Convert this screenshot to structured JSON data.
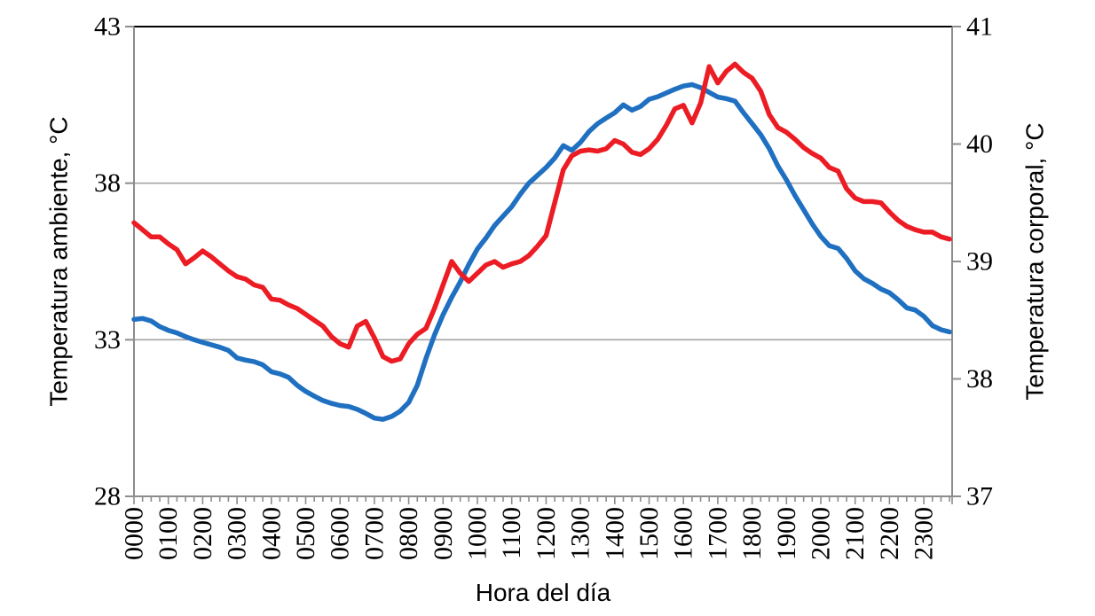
{
  "chart_data": {
    "type": "line",
    "title": "",
    "legend": "none",
    "background": "#ffffff",
    "x_axis": {
      "label": "Hora del día",
      "tick_labels": [
        "0000",
        "0100",
        "0200",
        "0300",
        "0400",
        "0500",
        "0600",
        "0700",
        "0800",
        "0900",
        "1000",
        "1100",
        "1200",
        "1300",
        "1400",
        "1500",
        "1600",
        "1700",
        "1800",
        "1900",
        "2000",
        "2100",
        "2200",
        "2300"
      ],
      "tick_label_rotation_deg": -90,
      "minor_tick_interval_minutes": 15,
      "range_hours": [
        0,
        24
      ]
    },
    "y_left": {
      "label": "Temperatura ambiente, °C",
      "min": 28,
      "max": 43,
      "ticks": [
        28,
        33,
        38,
        43
      ]
    },
    "y_right": {
      "label": "Temperatura corporal, °C",
      "min": 37,
      "max": 41,
      "ticks": [
        37,
        38,
        39,
        40,
        41
      ]
    },
    "gridlines": {
      "left_axis_values": [
        33,
        38
      ],
      "color": "#a3a3a3",
      "top_border_color": "#000000"
    },
    "axis_line_color": "#8c8c8c",
    "sampling": {
      "start_hour": 0,
      "step_hours": 0.25,
      "points_per_series": 96
    },
    "series": [
      {
        "name": "Temperatura ambiente",
        "axis": "left",
        "color": "#1f70c1",
        "values": [
          33.65,
          33.68,
          33.6,
          33.42,
          33.3,
          33.22,
          33.1,
          33.0,
          32.92,
          32.84,
          32.76,
          32.66,
          32.42,
          32.35,
          32.3,
          32.2,
          31.98,
          31.91,
          31.8,
          31.55,
          31.35,
          31.2,
          31.06,
          30.97,
          30.9,
          30.87,
          30.78,
          30.65,
          30.5,
          30.46,
          30.55,
          30.72,
          31.0,
          31.55,
          32.4,
          33.15,
          33.8,
          34.35,
          34.85,
          35.4,
          35.9,
          36.25,
          36.65,
          36.95,
          37.25,
          37.65,
          38.0,
          38.25,
          38.5,
          38.8,
          39.2,
          39.05,
          39.3,
          39.65,
          39.9,
          40.08,
          40.25,
          40.5,
          40.33,
          40.45,
          40.68,
          40.76,
          40.88,
          41.0,
          41.1,
          41.15,
          41.05,
          40.9,
          40.75,
          40.7,
          40.62,
          40.25,
          39.9,
          39.55,
          39.1,
          38.55,
          38.1,
          37.6,
          37.15,
          36.7,
          36.3,
          36.0,
          35.92,
          35.6,
          35.2,
          34.95,
          34.8,
          34.62,
          34.5,
          34.28,
          34.02,
          33.95,
          33.75,
          33.45,
          33.32,
          33.25
        ]
      },
      {
        "name": "Temperatura corporal",
        "axis": "right",
        "color": "#ec1c24",
        "values": [
          39.33,
          39.27,
          39.21,
          39.21,
          39.15,
          39.1,
          38.98,
          39.03,
          39.09,
          39.04,
          38.98,
          38.92,
          38.87,
          38.85,
          38.8,
          38.78,
          38.68,
          38.67,
          38.63,
          38.6,
          38.55,
          38.5,
          38.45,
          38.36,
          38.3,
          38.27,
          38.45,
          38.49,
          38.35,
          38.19,
          38.15,
          38.17,
          38.3,
          38.38,
          38.43,
          38.6,
          38.8,
          39.0,
          38.9,
          38.83,
          38.9,
          38.97,
          39.0,
          38.95,
          38.98,
          39.0,
          39.05,
          39.13,
          39.22,
          39.5,
          39.78,
          39.9,
          39.94,
          39.95,
          39.94,
          39.96,
          40.03,
          40.0,
          39.93,
          39.91,
          39.96,
          40.04,
          40.16,
          40.3,
          40.33,
          40.18,
          40.35,
          40.66,
          40.52,
          40.62,
          40.68,
          40.61,
          40.56,
          40.45,
          40.25,
          40.14,
          40.1,
          40.04,
          39.97,
          39.92,
          39.88,
          39.8,
          39.77,
          39.62,
          39.54,
          39.51,
          39.51,
          39.5,
          39.42,
          39.35,
          39.3,
          39.27,
          39.25,
          39.25,
          39.21,
          39.19
        ]
      }
    ]
  }
}
